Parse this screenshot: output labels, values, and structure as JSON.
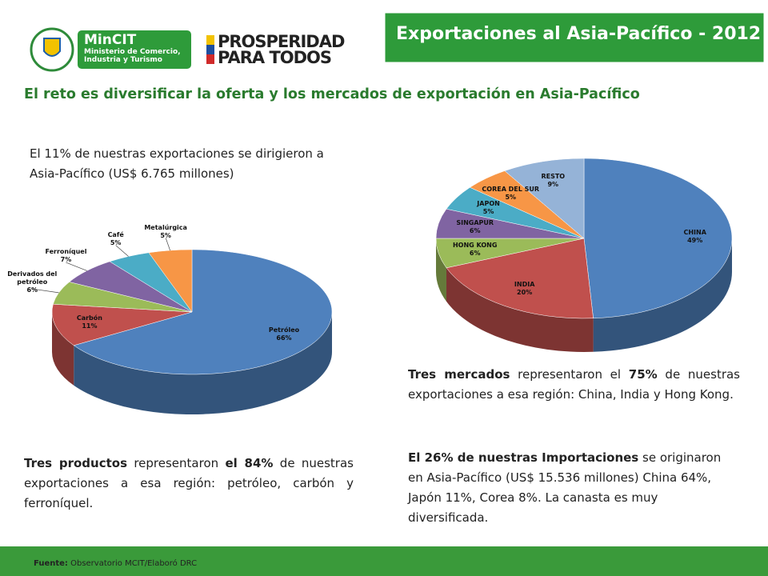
{
  "header": {
    "title": "Exportaciones al Asia-Pacífico - 2012",
    "logo_main": "MinCIT",
    "logo_sub": "Ministerio de Comercio, Industria y Turismo",
    "logo2_line1": "PROSPERIDAD",
    "logo2_line2": "PARA TODOS"
  },
  "subtitle": "El reto es diversificar la oferta y los mercados de exportación en Asia-Pacífico",
  "intro": "El 11% de nuestras exportaciones se dirigieron a Asia-Pacífico (US$ 6.765 millones)",
  "paragraphs": [
    [
      {
        "text": "Tres productos",
        "bold": true
      },
      {
        "text": " representaron ",
        "bold": false
      },
      {
        "text": "el 84%",
        "bold": true
      },
      {
        "text": " de nuestras exportaciones a esa región: petróleo, carbón y ferroníquel.",
        "bold": false
      }
    ],
    [
      {
        "text": "Tres mercados",
        "bold": true
      },
      {
        "text": " representaron el ",
        "bold": false
      },
      {
        "text": "75%",
        "bold": true
      },
      {
        "text": " de nuestras exportaciones a esa región: China, India y Hong Kong.",
        "bold": false
      }
    ],
    [
      {
        "text": "El 26% de nuestras Importaciones",
        "bold": true
      },
      {
        "text": " se originaron en Asia-Pacífico (US$ 15.536 millones) China 64%, Japón 11%, Corea 8%.  La canasta es muy diversificada.",
        "bold": false
      }
    ]
  ],
  "footer": [
    {
      "text": "Fuente:",
      "bold": true
    },
    {
      "text": " Observatorio MCIT/Elaboró DRC",
      "bold": false
    }
  ],
  "chart_data": [
    {
      "type": "pie",
      "categories": [
        "Petróleo",
        "Carbón",
        "Derivados del petróleo",
        "Ferroníquel",
        "Café",
        "Metalúrgica"
      ],
      "values": [
        66,
        11,
        6,
        7,
        5,
        5
      ],
      "value_labels": [
        "66%",
        "11%",
        "6%",
        "7%",
        "5%",
        "5%"
      ],
      "colors": [
        "#4f81bd",
        "#c0504d",
        "#9bbb59",
        "#8064a2",
        "#4bacc6",
        "#f79646"
      ]
    },
    {
      "type": "pie",
      "categories": [
        "CHINA",
        "INDIA",
        "HONG KONG",
        "SINGAPUR",
        "JAPON",
        "COREA DEL SUR",
        "RESTO"
      ],
      "values": [
        49,
        20,
        6,
        6,
        5,
        5,
        9
      ],
      "value_labels": [
        "49%",
        "20%",
        "6%",
        "6%",
        "5%",
        "5%",
        "9%"
      ],
      "colors": [
        "#4f81bd",
        "#c0504d",
        "#9bbb59",
        "#8064a2",
        "#4bacc6",
        "#f79646",
        "#95b3d7"
      ]
    }
  ]
}
